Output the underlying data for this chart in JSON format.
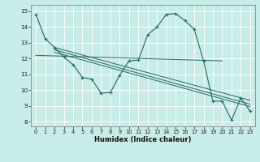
{
  "xlabel": "Humidex (Indice chaleur)",
  "xlim": [
    -0.5,
    23.5
  ],
  "ylim": [
    7.7,
    15.4
  ],
  "xticks": [
    0,
    1,
    2,
    3,
    4,
    5,
    6,
    7,
    8,
    9,
    10,
    11,
    12,
    13,
    14,
    15,
    16,
    17,
    18,
    19,
    20,
    21,
    22,
    23
  ],
  "yticks": [
    8,
    9,
    10,
    11,
    12,
    13,
    14,
    15
  ],
  "bg_color": "#c8ece8",
  "line_color": "#2d7068",
  "grid_color": "#b0dcd6",
  "main_curve": {
    "x": [
      0,
      1,
      2,
      3,
      4,
      5,
      6,
      7,
      8,
      9,
      10,
      11,
      12,
      13,
      14,
      15,
      16,
      17,
      18,
      19,
      20,
      21,
      22,
      23
    ],
    "y": [
      14.8,
      13.25,
      12.7,
      12.1,
      11.6,
      10.8,
      10.7,
      9.8,
      9.85,
      10.95,
      11.85,
      11.9,
      13.5,
      14.0,
      14.8,
      14.85,
      14.4,
      13.85,
      11.85,
      9.3,
      9.3,
      8.1,
      9.5,
      8.65
    ]
  },
  "diagonal_lines": [
    {
      "x": [
        2,
        23
      ],
      "y": [
        12.7,
        9.35
      ]
    },
    {
      "x": [
        2,
        23
      ],
      "y": [
        12.55,
        9.1
      ]
    },
    {
      "x": [
        2,
        23
      ],
      "y": [
        12.4,
        8.95
      ]
    }
  ],
  "flat_line": {
    "x": [
      0,
      20
    ],
    "y": [
      12.2,
      11.85
    ]
  },
  "figsize": [
    3.2,
    2.0
  ],
  "dpi": 100
}
